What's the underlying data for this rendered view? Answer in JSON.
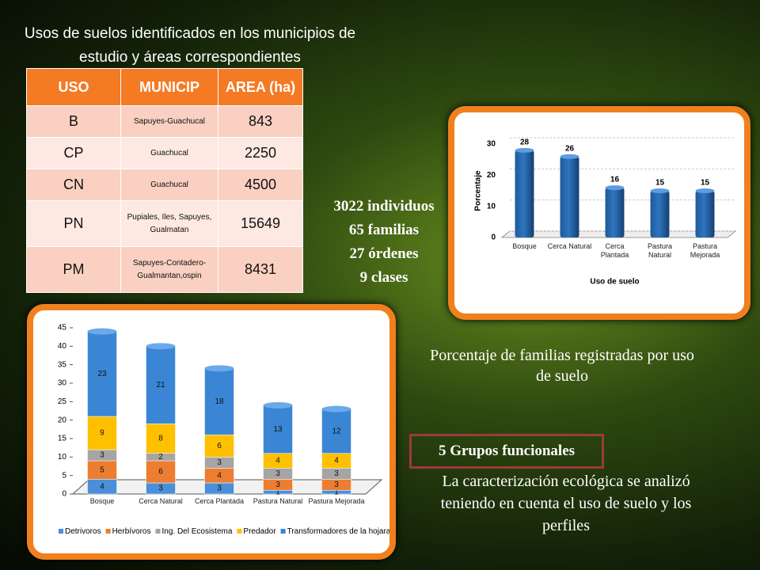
{
  "title": "Usos de suelos identificados en los municipios de estudio y áreas correspondientes",
  "table": {
    "header": [
      "USO",
      "MUNICIP",
      "AREA (ha)"
    ],
    "rows": [
      [
        "B",
        "Sapuyes-Guachucal",
        "843"
      ],
      [
        "CP",
        "Guachucal",
        "2250"
      ],
      [
        "CN",
        "Guachucal",
        "4500"
      ],
      [
        "PN",
        "Pupiales, Iles, Sapuyes, Gualmatan",
        "15649"
      ],
      [
        "PM",
        "Sapuyes-Contadero-Gualmantan,ospin",
        "8431"
      ]
    ]
  },
  "stats": [
    "3022 individuos",
    "65 familias",
    "27 órdenes",
    "9 clases"
  ],
  "bar_chart": {
    "type": "bar",
    "y_label": "Porcentaje",
    "x_label": "Uso de suelo",
    "categories": [
      "Bosque",
      "Cerca Natural",
      "Cerca Plantada",
      "Pastura Natural",
      "Pastura Mejorada"
    ],
    "values": [
      28,
      26,
      16,
      15,
      15
    ],
    "color": "#2e75c0",
    "ylim": [
      0,
      30
    ],
    "yticks": [
      0,
      10,
      20,
      30
    ]
  },
  "stacked_chart": {
    "type": "stacked_bar",
    "categories": [
      "Bosque",
      "Cerca Natural",
      "Cerca Plantada",
      "Pastura Natural",
      "Pastura Mejorada"
    ],
    "series": [
      {
        "name": "Detrivoros",
        "color": "#4a8fd8",
        "values": [
          4,
          3,
          3,
          1,
          1
        ]
      },
      {
        "name": "Herbívoros",
        "color": "#ed7d31",
        "values": [
          5,
          6,
          4,
          3,
          3
        ]
      },
      {
        "name": "Ing. Del Ecosistema",
        "color": "#a5a5a5",
        "values": [
          3,
          2,
          3,
          3,
          3
        ]
      },
      {
        "name": "Predador",
        "color": "#ffc000",
        "values": [
          9,
          8,
          6,
          4,
          4
        ]
      },
      {
        "name": "Transformadores de la hojarasca",
        "color": "#3a86d4",
        "values": [
          23,
          21,
          18,
          13,
          12
        ]
      }
    ],
    "ylim": [
      0,
      45
    ],
    "yticks": [
      0,
      5,
      10,
      15,
      20,
      25,
      30,
      35,
      40,
      45
    ]
  },
  "caption": "Porcentaje de familias registradas por uso de suelo",
  "groups": "5 Grupos funcionales",
  "description": "La caracterización ecológica se analizó teniendo en cuenta el uso de suelo y los perfiles"
}
